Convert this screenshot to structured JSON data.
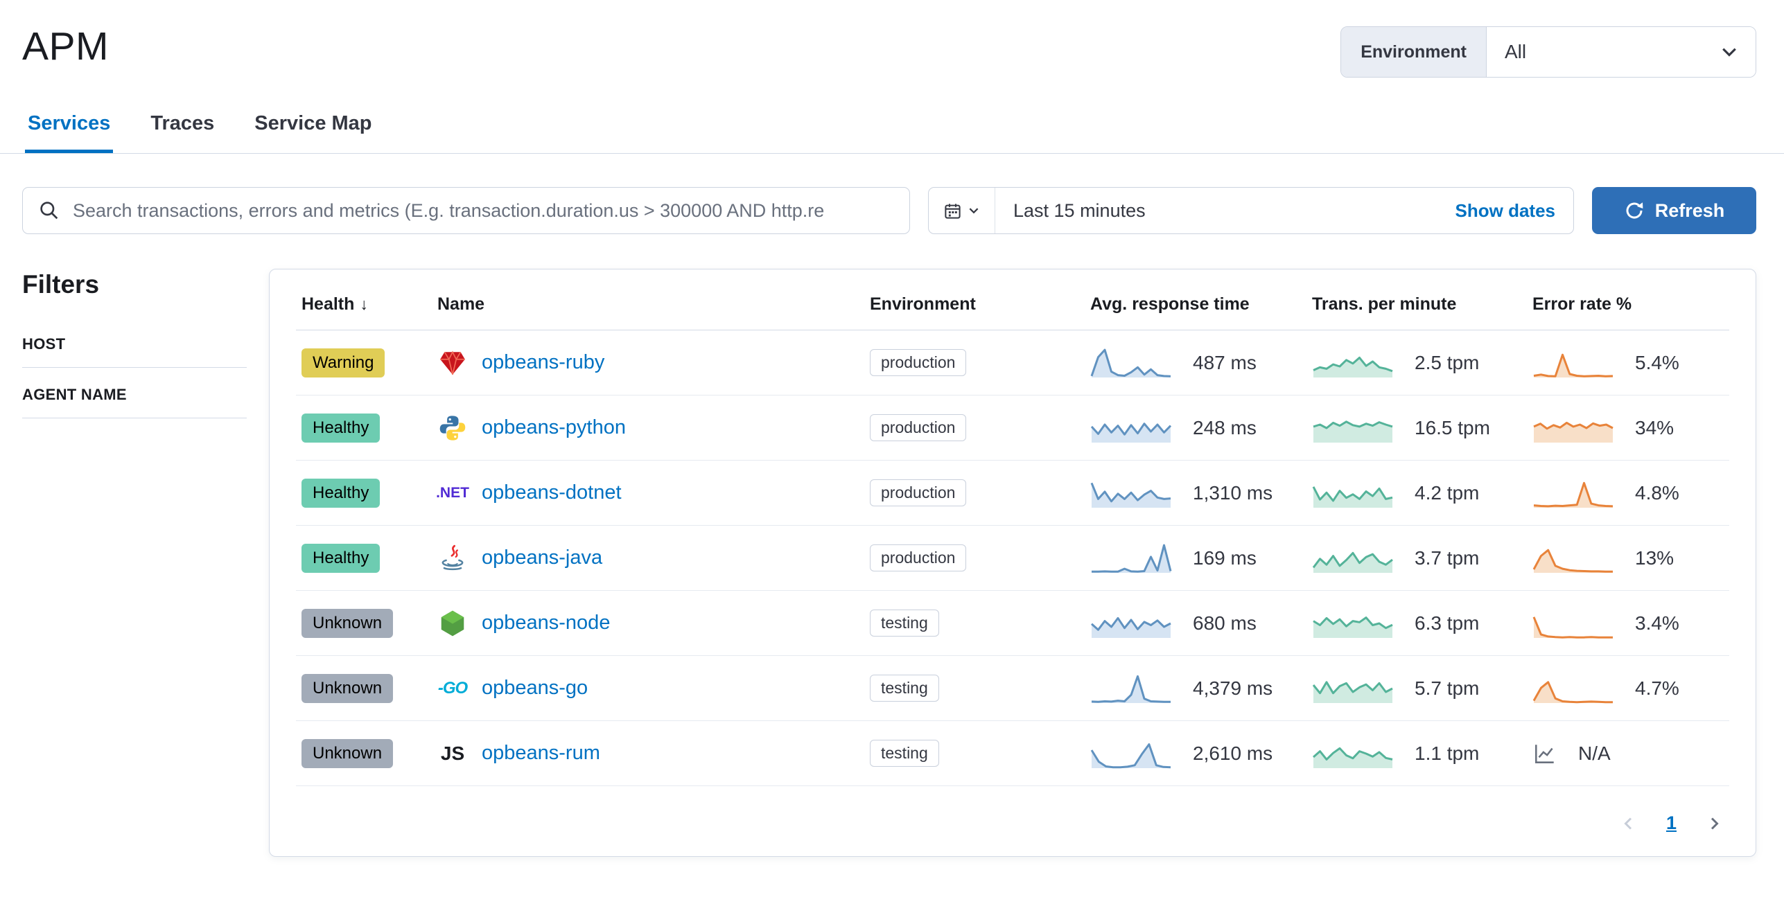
{
  "header": {
    "title": "APM"
  },
  "env_selector": {
    "label": "Environment",
    "value": "All"
  },
  "tabs": [
    {
      "label": "Services",
      "active": true
    },
    {
      "label": "Traces",
      "active": false
    },
    {
      "label": "Service Map",
      "active": false
    }
  ],
  "search_bar": {
    "placeholder": "Search transactions, errors and metrics (E.g. transaction.duration.us > 300000 AND http.re",
    "time_range": "Last 15 minutes",
    "show_dates": "Show dates",
    "refresh": "Refresh"
  },
  "filters": {
    "title": "Filters",
    "sections": [
      {
        "label": "HOST"
      },
      {
        "label": "AGENT NAME"
      }
    ]
  },
  "icon_text": {
    "dotnet": ".NET",
    "go": "-GO",
    "rum": "JS"
  },
  "services_table": {
    "columns": [
      {
        "label": "Health",
        "sorted": "desc"
      },
      {
        "label": "Name"
      },
      {
        "label": "Environment"
      },
      {
        "label": "Avg. response time"
      },
      {
        "label": "Trans. per minute"
      },
      {
        "label": "Error rate %"
      }
    ],
    "rows": [
      {
        "health": "Warning",
        "health_status": "warning",
        "icon": "ruby",
        "name": "opbeans-ruby",
        "environment": "production",
        "response_time": "487 ms",
        "tpm": "2.5 tpm",
        "error_rate": "5.4%",
        "spark_latency": [
          5,
          70,
          95,
          20,
          8,
          6,
          18,
          35,
          10,
          28,
          8,
          5,
          4
        ],
        "spark_tpm": [
          25,
          35,
          30,
          45,
          38,
          60,
          48,
          68,
          40,
          55,
          35,
          30,
          22
        ],
        "spark_error": [
          6,
          10,
          5,
          4,
          78,
          12,
          6,
          4,
          5,
          6,
          4,
          5
        ]
      },
      {
        "health": "Healthy",
        "health_status": "healthy",
        "icon": "python",
        "name": "opbeans-python",
        "environment": "production",
        "response_time": "248 ms",
        "tpm": "16.5 tpm",
        "error_rate": "34%",
        "spark_latency": [
          55,
          30,
          62,
          35,
          58,
          28,
          60,
          32,
          65,
          38,
          62,
          35,
          58
        ],
        "spark_tpm": [
          55,
          62,
          50,
          68,
          58,
          72,
          60,
          55,
          65,
          58,
          70,
          62,
          55
        ],
        "spark_error": [
          55,
          65,
          48,
          60,
          52,
          68,
          55,
          62,
          50,
          66,
          58,
          62,
          50
        ]
      },
      {
        "health": "Healthy",
        "health_status": "healthy",
        "icon": "dotnet",
        "name": "opbeans-dotnet",
        "environment": "production",
        "response_time": "1,310 ms",
        "tpm": "4.2 tpm",
        "error_rate": "4.8%",
        "spark_latency": [
          85,
          30,
          55,
          22,
          48,
          30,
          52,
          26,
          45,
          58,
          35,
          30,
          32
        ],
        "spark_tpm": [
          72,
          28,
          52,
          24,
          58,
          34,
          46,
          30,
          56,
          40,
          66,
          30,
          35
        ],
        "spark_error": [
          8,
          6,
          5,
          7,
          6,
          8,
          10,
          85,
          14,
          8,
          6,
          5
        ]
      },
      {
        "health": "Healthy",
        "health_status": "healthy",
        "icon": "java",
        "name": "opbeans-java",
        "environment": "production",
        "response_time": "169 ms",
        "tpm": "3.7 tpm",
        "error_rate": "13%",
        "spark_latency": [
          4,
          4,
          5,
          4,
          4,
          14,
          5,
          4,
          6,
          55,
          8,
          95,
          6
        ],
        "spark_tpm": [
          18,
          48,
          28,
          58,
          24,
          44,
          68,
          34,
          54,
          64,
          38,
          28,
          45
        ],
        "spark_error": [
          12,
          58,
          78,
          24,
          14,
          9,
          7,
          6,
          5,
          5,
          4,
          4
        ]
      },
      {
        "health": "Unknown",
        "health_status": "unknown",
        "icon": "node",
        "name": "opbeans-node",
        "environment": "testing",
        "response_time": "680 ms",
        "tpm": "6.3 tpm",
        "error_rate": "3.4%",
        "spark_latency": [
          48,
          28,
          58,
          38,
          68,
          34,
          62,
          30,
          55,
          44,
          60,
          38,
          50
        ],
        "spark_tpm": [
          58,
          44,
          68,
          48,
          64,
          40,
          58,
          54,
          70,
          44,
          50,
          34,
          45
        ],
        "spark_error": [
          72,
          12,
          5,
          3,
          2,
          3,
          2,
          2,
          3,
          2,
          2,
          2
        ]
      },
      {
        "health": "Unknown",
        "health_status": "unknown",
        "icon": "go",
        "name": "opbeans-go",
        "environment": "testing",
        "response_time": "4,379 ms",
        "tpm": "5.7 tpm",
        "error_rate": "4.7%",
        "spark_latency": [
          5,
          4,
          6,
          5,
          8,
          6,
          28,
          92,
          15,
          6,
          5,
          4,
          4
        ],
        "spark_tpm": [
          62,
          34,
          72,
          34,
          58,
          68,
          38,
          54,
          64,
          44,
          68,
          38,
          50
        ],
        "spark_error": [
          8,
          52,
          72,
          16,
          6,
          4,
          3,
          4,
          5,
          4,
          3,
          3
        ]
      },
      {
        "health": "Unknown",
        "health_status": "unknown",
        "icon": "rum",
        "name": "opbeans-rum",
        "environment": "testing",
        "response_time": "2,610 ms",
        "tpm": "1.1 tpm",
        "error_rate": "N/A",
        "spark_latency": [
          62,
          22,
          6,
          3,
          3,
          5,
          10,
          48,
          82,
          10,
          4,
          3
        ],
        "spark_tpm": [
          38,
          58,
          30,
          52,
          68,
          44,
          34,
          58,
          50,
          40,
          55,
          35,
          30
        ],
        "spark_error": null
      }
    ]
  },
  "pagination": {
    "page": "1"
  },
  "colors": {
    "accent": "#0071c2",
    "refresh_button": "#2e6fb7",
    "latency_stroke": "#6092c0",
    "latency_fill": "#d6e4f3",
    "tpm_stroke": "#54b399",
    "tpm_fill": "#d0ebe1",
    "error_stroke": "#e8833a",
    "error_fill": "#f8dfc8",
    "badge_warning": "#e0cd56",
    "badge_healthy": "#6dccb1",
    "badge_unknown": "#a2abb8"
  }
}
